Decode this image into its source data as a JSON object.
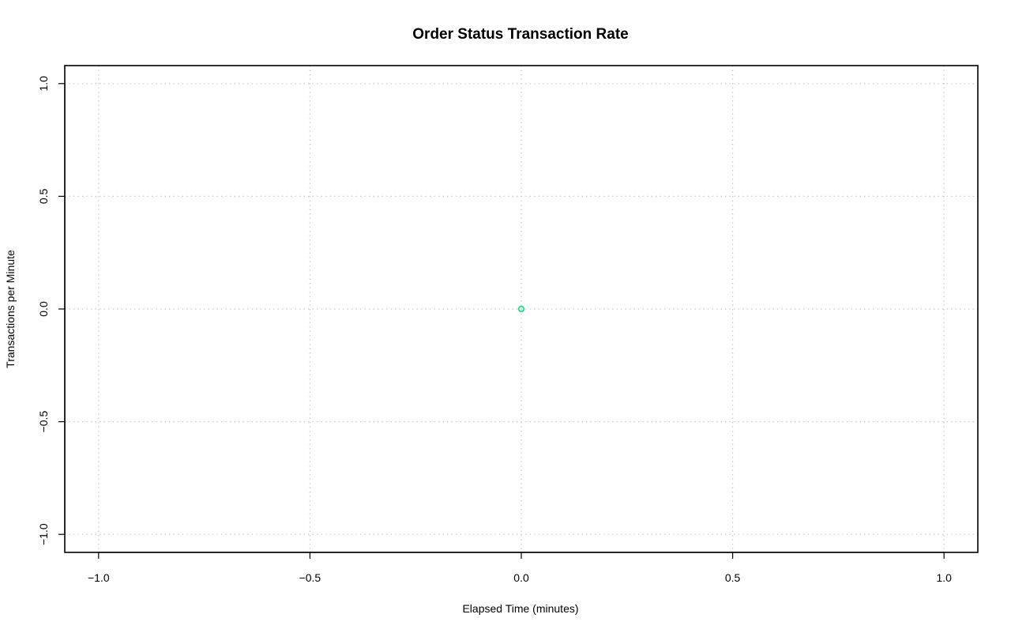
{
  "chart_data": {
    "type": "scatter",
    "title": "Order Status Transaction Rate",
    "xlabel": "Elapsed Time (minutes)",
    "ylabel": "Transactions per Minute",
    "xlim": [
      -1.0,
      1.0
    ],
    "ylim": [
      -1.0,
      1.0
    ],
    "x_ticks": [
      -1.0,
      -0.5,
      0.0,
      0.5,
      1.0
    ],
    "x_tick_labels": [
      "−1.0",
      "−0.5",
      "0.0",
      "0.5",
      "1.0"
    ],
    "y_ticks": [
      -1.0,
      -0.5,
      0.0,
      0.5,
      1.0
    ],
    "y_tick_labels": [
      "−1.0",
      "−0.5",
      "0.0",
      "0.5",
      "1.0"
    ],
    "grid": true,
    "series": [
      {
        "marker": "open-circle",
        "color": "#00e676",
        "points": [
          {
            "x": 0.0,
            "y": 0.0
          }
        ]
      }
    ]
  }
}
